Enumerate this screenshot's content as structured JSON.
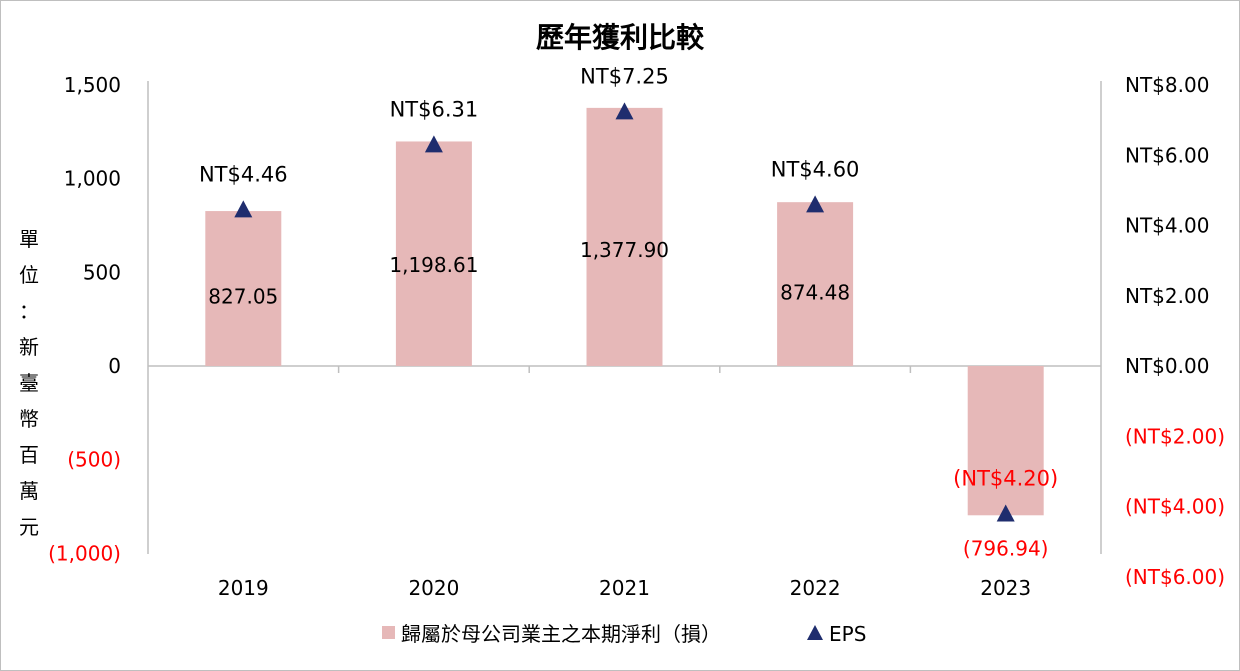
{
  "chart_data": {
    "type": "bar",
    "title": "歷年獲利比較",
    "categories": [
      "2019",
      "2020",
      "2021",
      "2022",
      "2023"
    ],
    "ylabel": "單位：新臺幣百萬元",
    "ylim": [
      -1000,
      1500
    ],
    "yticks": [
      1500,
      1000,
      500,
      0,
      -500,
      -1000
    ],
    "ytick_labels": [
      "1,500",
      "1,000",
      "500",
      "0",
      "(500)",
      "(1,000)"
    ],
    "y2lim": [
      -6,
      8
    ],
    "y2ticks": [
      8,
      6,
      4,
      2,
      0,
      -2,
      -4,
      -6
    ],
    "y2tick_labels": [
      "NT$8.00",
      "NT$6.00",
      "NT$4.00",
      "NT$2.00",
      "NT$0.00",
      "(NT$2.00)",
      "(NT$4.00)",
      "(NT$6.00)"
    ],
    "grid": false,
    "legend_position": "bottom",
    "series": [
      {
        "name": "歸屬於母公司業主之本期淨利（損）",
        "type": "bar",
        "axis": "left",
        "color": "#e6b8b8",
        "values": [
          827.05,
          1198.61,
          1377.9,
          874.48,
          -796.94
        ],
        "labels": [
          "827.05",
          "1,198.61",
          "1,377.90",
          "874.48",
          "(796.94)"
        ]
      },
      {
        "name": "EPS",
        "type": "marker",
        "marker": "triangle",
        "axis": "right",
        "color": "#1f2d6e",
        "values": [
          4.46,
          6.31,
          7.25,
          4.6,
          -4.2
        ],
        "labels": [
          "NT$4.46",
          "NT$6.31",
          "NT$7.25",
          "NT$4.60",
          "(NT$4.20)"
        ]
      }
    ],
    "negative_color": "#ff0000",
    "text_color": "#000000",
    "axis_color": "#bfbfbf"
  }
}
